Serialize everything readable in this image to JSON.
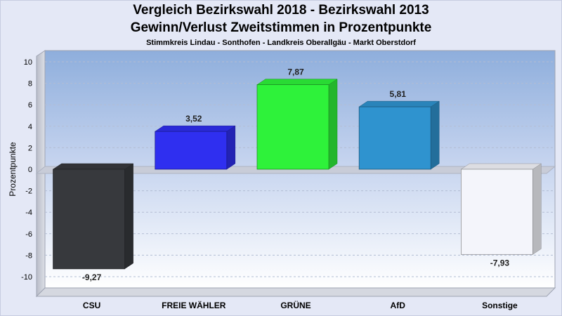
{
  "chart_data": {
    "type": "bar",
    "title": "Vergleich Bezirkswahl 2018 - Bezirkswahl 2013",
    "subtitle": "Gewinn/Verlust Zweitstimmen in Prozentpunkte",
    "subsubtitle": "Stimmkreis Lindau - Sonthofen - Landkreis Oberallgäu - Markt Oberstdorf",
    "ylabel": "Prozentpunkte",
    "xlabel": "",
    "ylim": [
      -10,
      10
    ],
    "yticks": [
      10,
      8,
      6,
      4,
      2,
      0,
      -2,
      -4,
      -6,
      -8,
      -10
    ],
    "categories": [
      "CSU",
      "FREIE WÄHLER",
      "GRÜNE",
      "AfD",
      "Sonstige"
    ],
    "values": [
      -9.27,
      3.52,
      7.87,
      5.81,
      -7.93
    ],
    "value_labels": [
      "-9,27",
      "3,52",
      "7,87",
      "5,81",
      "-7,93"
    ],
    "colors": [
      "#37393d",
      "#2f2ff0",
      "#2ef23a",
      "#2f93cf",
      "#f4f5fb"
    ],
    "grid": true,
    "legend": "none"
  }
}
